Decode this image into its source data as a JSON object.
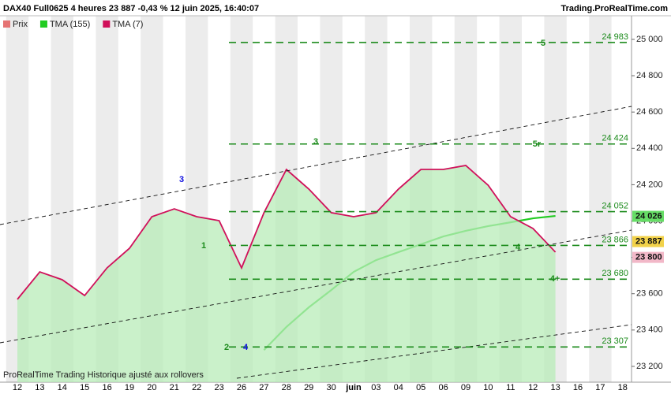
{
  "header": {
    "title": "DAX40 Full0625 4 heures 23 887 -0,43 % 12 juin 2025, 16:40:07",
    "site": "Trading.ProRealTime.com"
  },
  "footer": "ProRealTime Trading  Historique ajusté aux rollovers",
  "chart_data": {
    "type": "line",
    "legend": [
      "Prix"
    ],
    "categories": [
      "12",
      "13",
      "14",
      "15",
      "16",
      "19",
      "20",
      "21",
      "22",
      "23",
      "26",
      "27",
      "28",
      "29",
      "30",
      "juin",
      "03",
      "04",
      "05",
      "06",
      "09",
      "10",
      "11",
      "12",
      "13",
      "16",
      "17",
      "18"
    ],
    "series": [
      {
        "name": "TMA (155)",
        "color": "#22cc22",
        "values": [
          null,
          null,
          null,
          null,
          null,
          null,
          null,
          null,
          null,
          null,
          null,
          23290,
          23417,
          23525,
          23620,
          23720,
          23785,
          23829,
          23872,
          23915,
          23946,
          23972,
          23993,
          24015,
          24028,
          null,
          null,
          null
        ]
      },
      {
        "name": "TMA (7)",
        "color": "#d0105a",
        "values": [
          23569,
          23720,
          23677,
          23590,
          23742,
          23850,
          24024,
          24067,
          24024,
          24002,
          23742,
          24046,
          24284,
          24176,
          24046,
          24024,
          24046,
          24176,
          24284,
          24284,
          24306,
          24197,
          24024,
          23959,
          23829,
          null,
          null,
          null
        ]
      }
    ],
    "ylim": [
      23113,
      25130
    ],
    "yticks": [
      {
        "value": 23200,
        "label": "23 200"
      },
      {
        "value": 23400,
        "label": "23 400"
      },
      {
        "value": 23600,
        "label": "23 600"
      },
      {
        "value": 23800,
        "label": "23 800"
      },
      {
        "value": 24000,
        "label": "24 000"
      },
      {
        "value": 24200,
        "label": "24 200"
      },
      {
        "value": 24400,
        "label": "24 400"
      },
      {
        "value": 24600,
        "label": "24 600"
      },
      {
        "value": 24800,
        "label": "24 800"
      },
      {
        "value": 25000,
        "label": "25 000"
      }
    ],
    "levels": [
      {
        "value": 24983,
        "label": "24 983"
      },
      {
        "value": 24424,
        "label": "24 424"
      },
      {
        "value": 24052,
        "label": "24 052"
      },
      {
        "value": 23866,
        "label": "23 866"
      },
      {
        "value": 23680,
        "label": "23 680"
      },
      {
        "value": 23307,
        "label": "23 307"
      }
    ],
    "level_color": "#1a8a1a",
    "price_tags": [
      {
        "value": 24026,
        "label": "24 026",
        "color": "#66dd66"
      },
      {
        "value": 23887,
        "label": "23 887",
        "color": "#f2d24a"
      },
      {
        "value": 23800,
        "label": "23 800",
        "color": "#f2b8c8"
      }
    ],
    "annotations": [
      {
        "text": "5",
        "color": "#1a8a1a"
      },
      {
        "text": "5r",
        "color": "#1a8a1a"
      },
      {
        "text": "3",
        "color": "#1010e0"
      },
      {
        "text": "3",
        "color": "#1a8a1a"
      },
      {
        "text": "1",
        "color": "#1a8a1a"
      },
      {
        "text": "2",
        "color": "#1a8a1a"
      },
      {
        "text": "4",
        "color": "#1010e0"
      },
      {
        "text": "4",
        "color": "#1a8a1a"
      },
      {
        "text": "4+",
        "color": "#1a8a1a"
      }
    ]
  }
}
